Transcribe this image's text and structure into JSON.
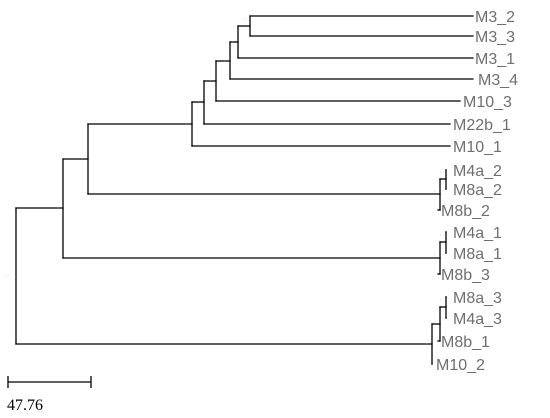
{
  "tree": {
    "leaves": [
      "M3_2",
      "M3_3",
      "M3_1",
      "M3_4",
      "M10_3",
      "M22b_1",
      "M10_1",
      "M4a_2",
      "M8a_2",
      "M8b_2",
      "M4a_1",
      "M8a_1",
      "M8b_3",
      "M8a_3",
      "M4a_3",
      "M8b_1",
      "M10_2"
    ],
    "label_color": "#6f6f6f",
    "branch_color": "#000000"
  },
  "scale_bar": {
    "label": "47.76"
  }
}
